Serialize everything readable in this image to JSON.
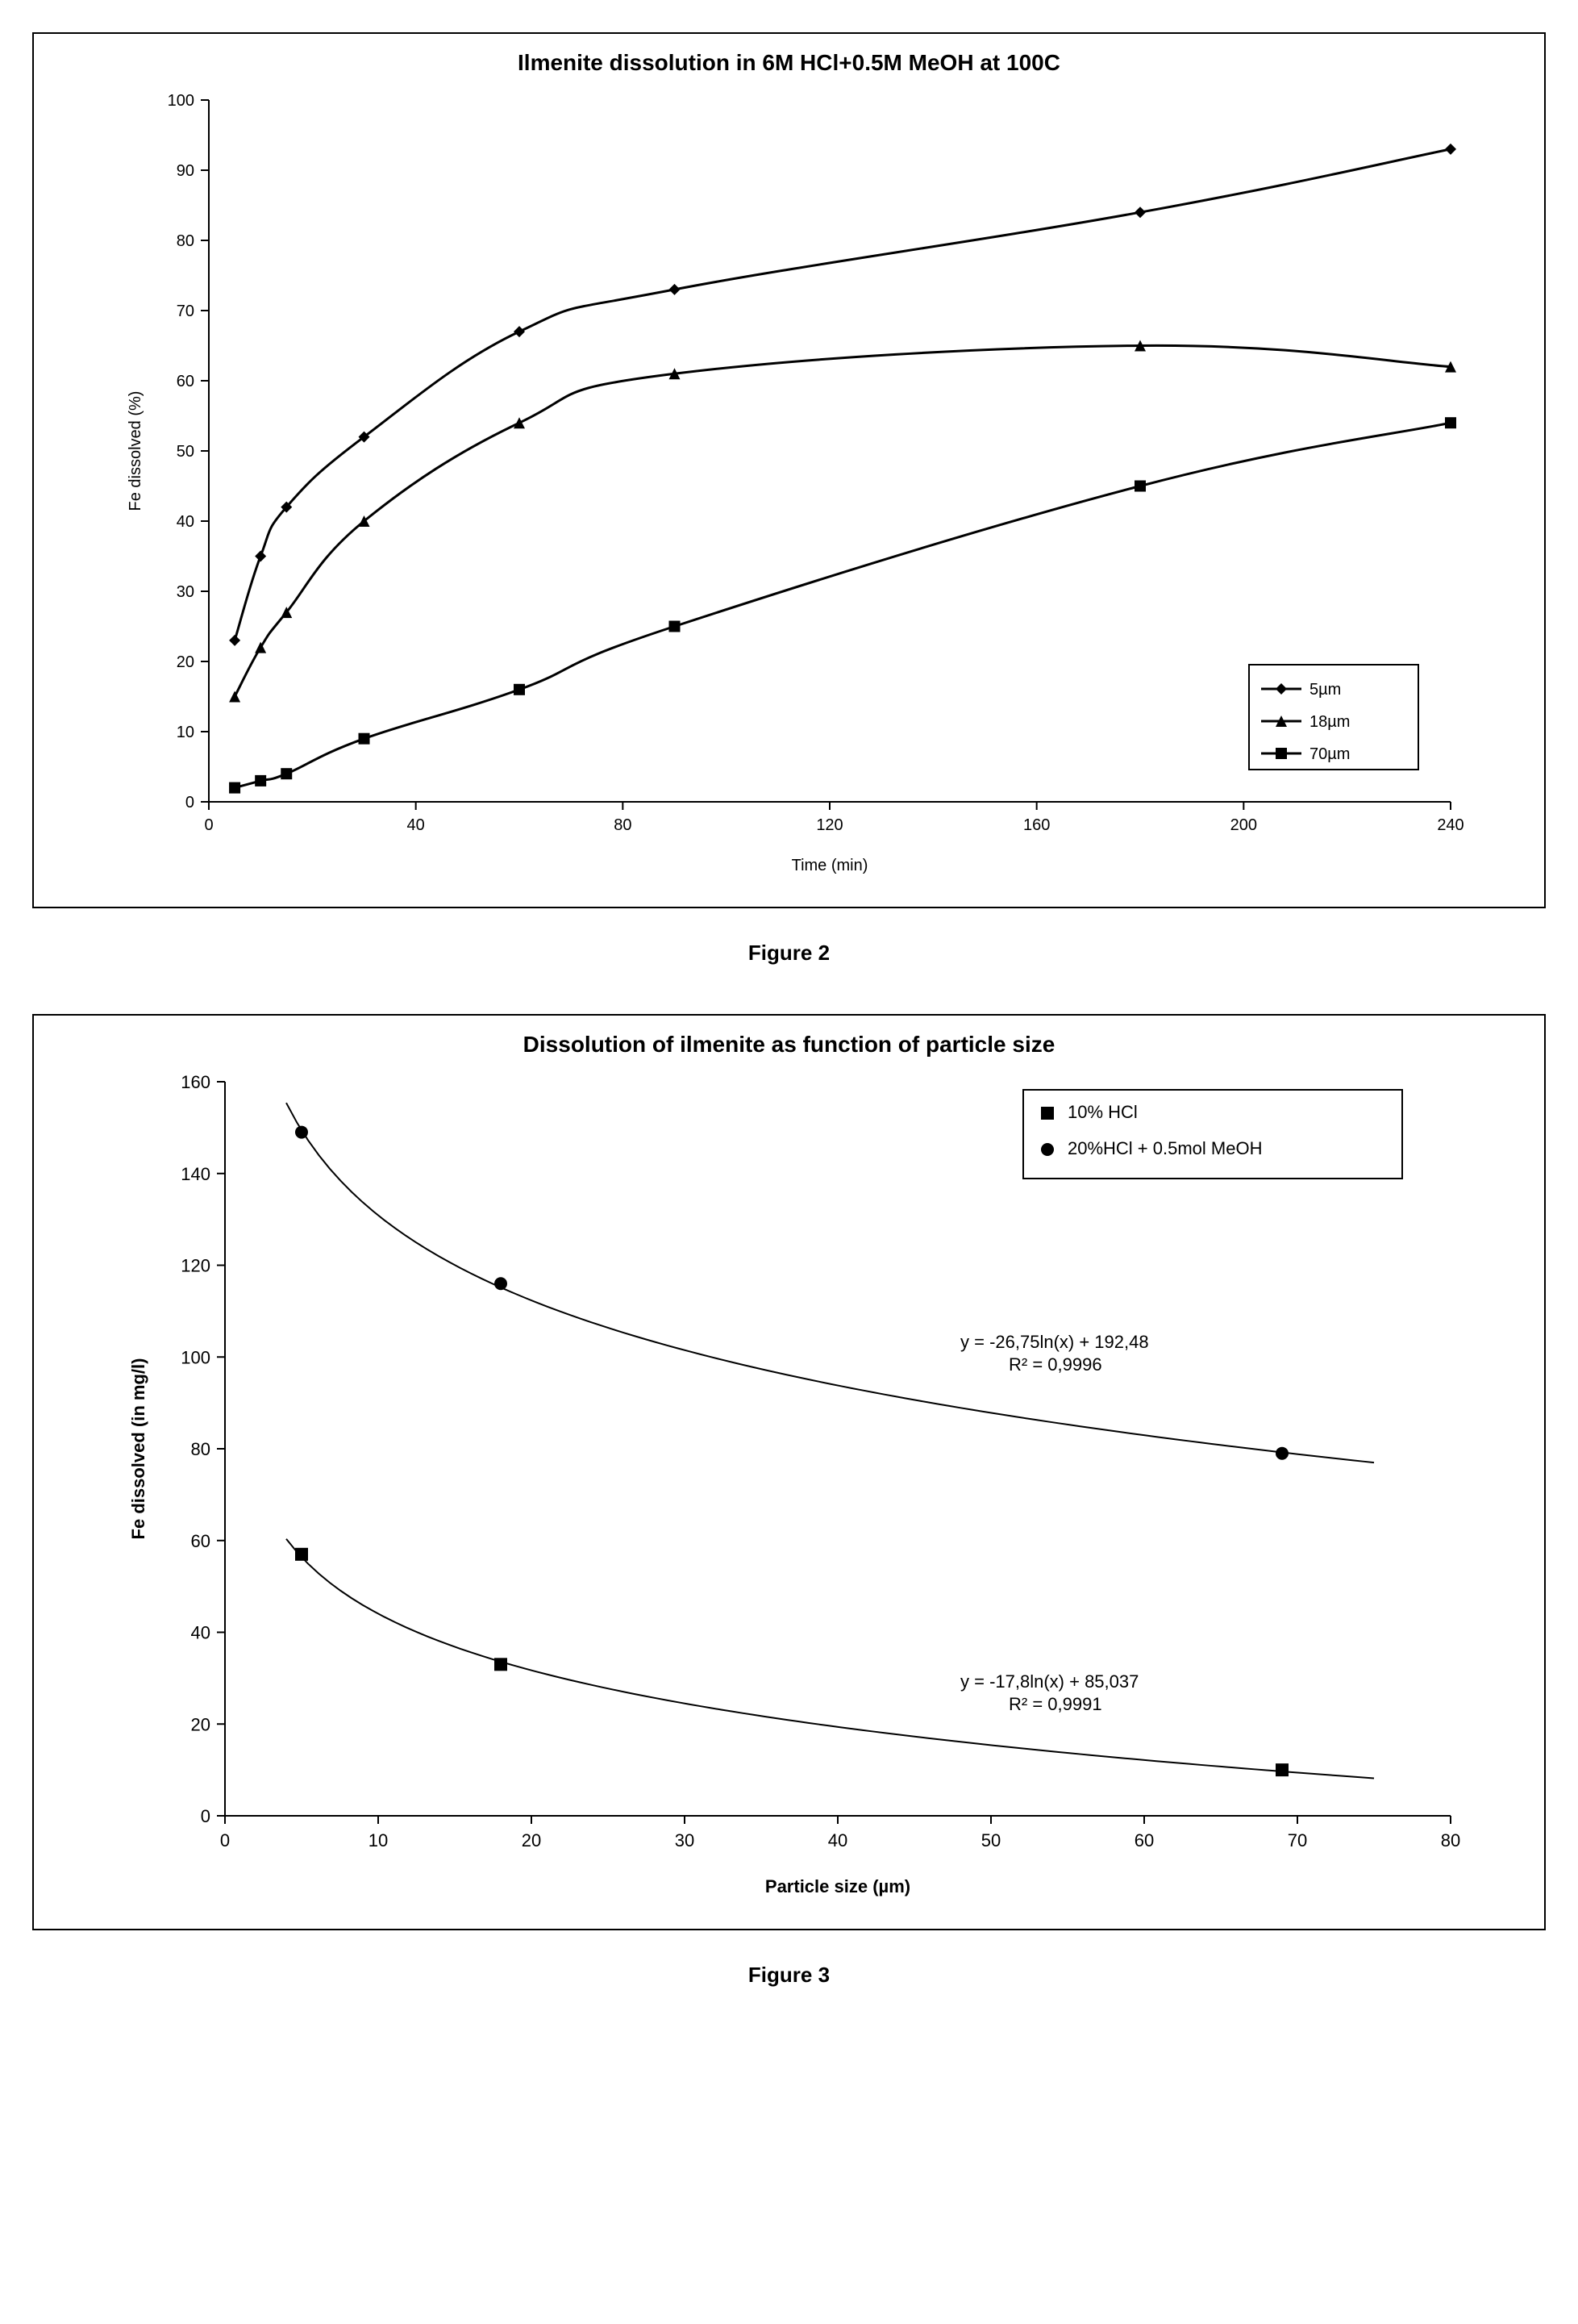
{
  "figure2": {
    "caption": "Figure 2",
    "chart": {
      "type": "line",
      "title": "Ilmenite dissolution in 6M HCl+0.5M MeOH at 100C",
      "title_fontsize": 28,
      "xlabel": "Time (min)",
      "ylabel": "Fe dissolved (%)",
      "label_fontsize": 20,
      "tick_fontsize": 20,
      "xlim": [
        0,
        240
      ],
      "ylim": [
        0,
        100
      ],
      "xtick_step": 40,
      "ytick_step": 10,
      "background_color": "#ffffff",
      "grid_on": false,
      "line_color": "#000000",
      "line_width": 3,
      "marker_size": 14,
      "legend_position": "bottom-right",
      "legend_border": "#000000",
      "series": [
        {
          "label": "5µm",
          "marker": "diamond",
          "x": [
            5,
            10,
            15,
            30,
            60,
            90,
            180,
            240
          ],
          "y": [
            23,
            35,
            42,
            52,
            67,
            73,
            84,
            93
          ]
        },
        {
          "label": "18µm",
          "marker": "triangle",
          "x": [
            5,
            10,
            15,
            30,
            60,
            90,
            180,
            240
          ],
          "y": [
            15,
            22,
            27,
            40,
            54,
            61,
            65,
            62
          ]
        },
        {
          "label": "70µm",
          "marker": "square",
          "x": [
            5,
            10,
            15,
            30,
            60,
            90,
            180,
            240
          ],
          "y": [
            2,
            3,
            4,
            9,
            16,
            25,
            45,
            54
          ]
        }
      ]
    }
  },
  "figure3": {
    "caption": "Figure 3",
    "chart": {
      "type": "scatter-trend",
      "title": "Dissolution of ilmenite as function of particle size",
      "title_fontsize": 28,
      "xlabel": "Particle size (µm)",
      "ylabel": "Fe dissolved (in mg/l)",
      "label_fontsize": 22,
      "tick_fontsize": 22,
      "xlim": [
        0,
        80
      ],
      "ylim": [
        0,
        160
      ],
      "xtick_step": 10,
      "ytick_step": 20,
      "background_color": "#ffffff",
      "grid_on": false,
      "line_color": "#000000",
      "line_width": 2,
      "marker_size": 16,
      "legend_position": "top-right",
      "legend_border": "#000000",
      "series": [
        {
          "label": "10% HCl",
          "marker": "square",
          "x": [
            5,
            18,
            69
          ],
          "y": [
            57,
            33,
            10
          ],
          "trend_eq": "y = -17,8ln(x) + 85,037",
          "trend_r2": "R² = 0,9991",
          "annotation_pos": {
            "x": 48,
            "y": 28
          }
        },
        {
          "label": "20%HCl + 0.5mol MeOH",
          "marker": "circle",
          "x": [
            5,
            18,
            69
          ],
          "y": [
            149,
            116,
            79
          ],
          "trend_eq": "y = -26,75ln(x) + 192,48",
          "trend_r2": "R² = 0,9996",
          "annotation_pos": {
            "x": 48,
            "y": 102
          }
        }
      ]
    }
  }
}
